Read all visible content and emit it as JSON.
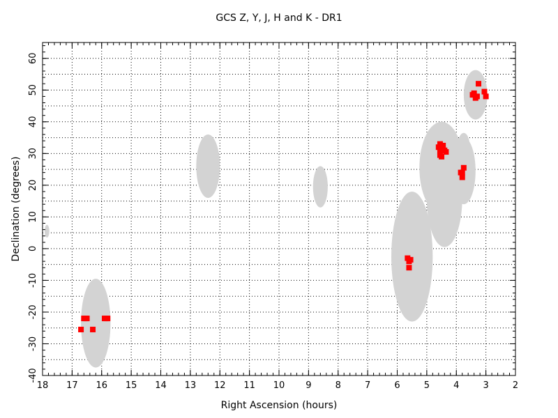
{
  "chart_data": {
    "type": "scatter",
    "title": "GCS Z, Y, J, H and K - DR1",
    "xlabel": "Right Ascension (hours)",
    "ylabel": "Declination (degrees)",
    "xlim": [
      18,
      2
    ],
    "ylim": [
      -40,
      65
    ],
    "x_ticks": [
      "18",
      "17",
      "16",
      "15",
      "14",
      "13",
      "12",
      "11",
      "10",
      "9",
      "8",
      "7",
      "6",
      "5",
      "4",
      "3",
      "2"
    ],
    "y_ticks": [
      "-40",
      "-30",
      "-20",
      "-10",
      "0",
      "10",
      "20",
      "30",
      "40",
      "50",
      "60"
    ],
    "grid": true,
    "coverage_color": "#d3d3d3",
    "data_color": "#ff0000",
    "coverage_regions": [
      {
        "ra": 16.2,
        "dec": -23.5,
        "rx_hours": 0.5,
        "ry_deg": 14
      },
      {
        "ra": 12.4,
        "dec": 26,
        "rx_hours": 0.4,
        "ry_deg": 10
      },
      {
        "ra": 8.6,
        "dec": 19.5,
        "rx_hours": 0.25,
        "ry_deg": 6.5
      },
      {
        "ra": 5.5,
        "dec": -2.5,
        "rx_hours": 0.7,
        "ry_deg": 20.5
      },
      {
        "ra": 4.5,
        "dec": 25.5,
        "rx_hours": 0.75,
        "ry_deg": 14.5
      },
      {
        "ra": 4.4,
        "dec": 16,
        "rx_hours": 0.6,
        "ry_deg": 15.5
      },
      {
        "ra": 3.75,
        "dec": 24.5,
        "rx_hours": 0.4,
        "ry_deg": 10.5
      },
      {
        "ra": 3.75,
        "dec": 32.5,
        "rx_hours": 0.2,
        "ry_deg": 4
      },
      {
        "ra": 3.35,
        "dec": 48.5,
        "rx_hours": 0.4,
        "ry_deg": 7.8
      },
      {
        "ra": 17.85,
        "dec": 5.5,
        "rx_hours": 0.08,
        "ry_deg": 2
      }
    ],
    "series": [
      {
        "x": [
          16.6,
          16.55,
          16.5,
          15.9,
          15.85,
          15.8,
          16.7,
          16.3,
          5.65,
          5.6,
          5.55,
          5.6,
          4.6,
          4.55,
          4.5,
          4.45,
          4.55,
          4.35,
          4.4,
          4.5,
          4.55,
          3.85,
          3.8,
          3.75,
          3.8,
          3.45,
          3.4,
          3.3,
          3.35,
          3.25,
          3.05,
          3.0
        ],
        "y": [
          -22,
          -22,
          -22,
          -22,
          -22,
          -22,
          -25.5,
          -25.5,
          -3,
          -4,
          -3.5,
          -6,
          32,
          30.5,
          31,
          32.5,
          29.5,
          30.5,
          31,
          29,
          33,
          24,
          22.5,
          25.5,
          24,
          48.5,
          49,
          48,
          47.5,
          52,
          49.5,
          48
        ]
      }
    ]
  }
}
